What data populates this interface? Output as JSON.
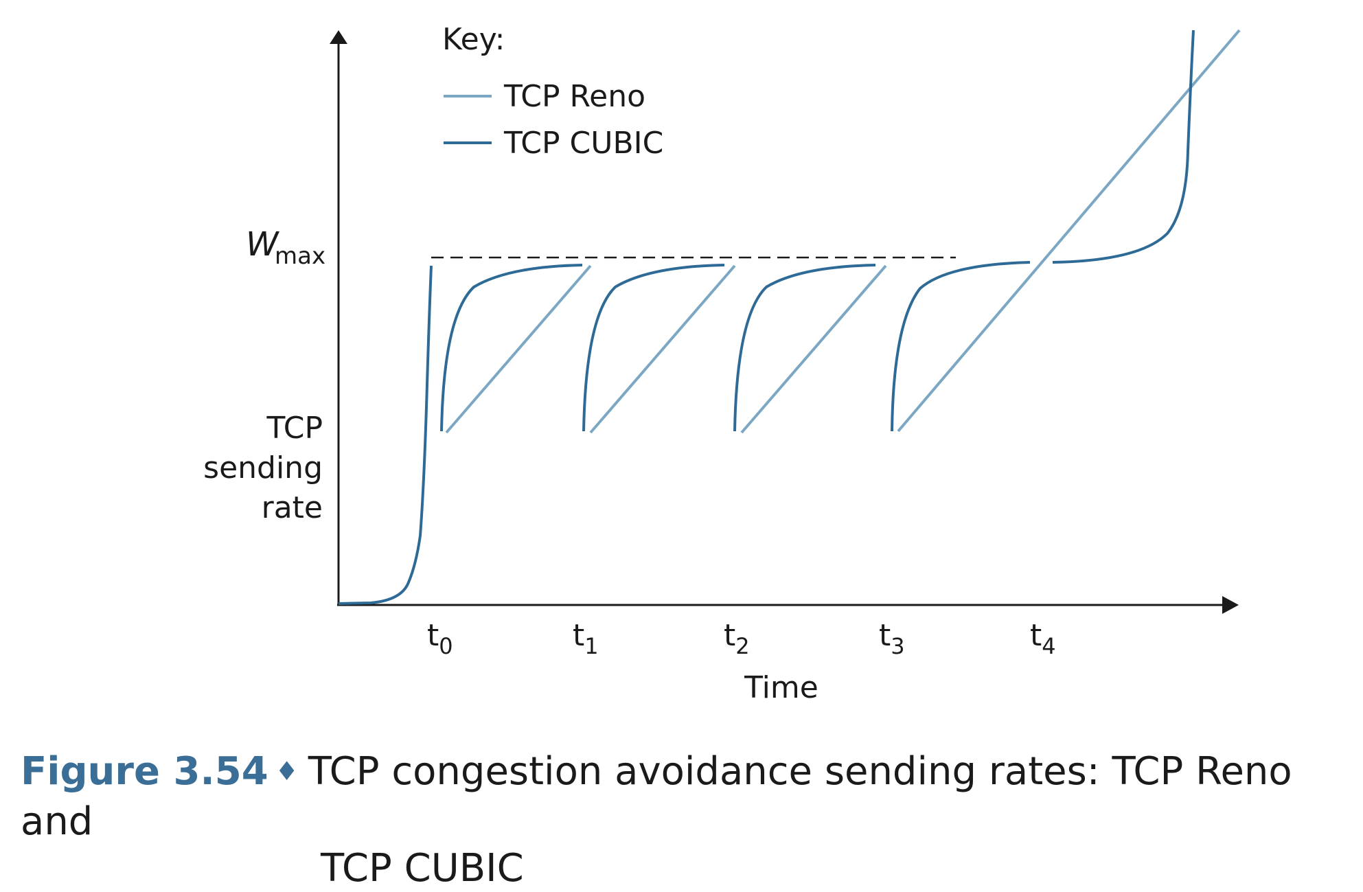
{
  "legend": {
    "title": "Key:",
    "items": [
      {
        "label": "TCP Reno",
        "color": "#7ca7c4"
      },
      {
        "label": "TCP CUBIC",
        "color": "#2e6a96"
      }
    ]
  },
  "y_axis": {
    "label_lines": [
      "TCP",
      "sending",
      "rate"
    ],
    "wmax_main": "W",
    "wmax_sub": "max"
  },
  "x_axis": {
    "label": "Time",
    "ticks": [
      {
        "base": "t",
        "sub": "0"
      },
      {
        "base": "t",
        "sub": "1"
      },
      {
        "base": "t",
        "sub": "2"
      },
      {
        "base": "t",
        "sub": "3"
      },
      {
        "base": "t",
        "sub": "4"
      }
    ]
  },
  "caption": {
    "figure": "Figure 3.54",
    "separator": "♦",
    "line1": "TCP congestion avoidance sending rates: TCP Reno and",
    "line2": "TCP CUBIC"
  },
  "colors": {
    "reno": "#7ca7c4",
    "cubic": "#2e6a96",
    "axis": "#1a1a1a",
    "caption_accent": "#3a6e96"
  }
}
